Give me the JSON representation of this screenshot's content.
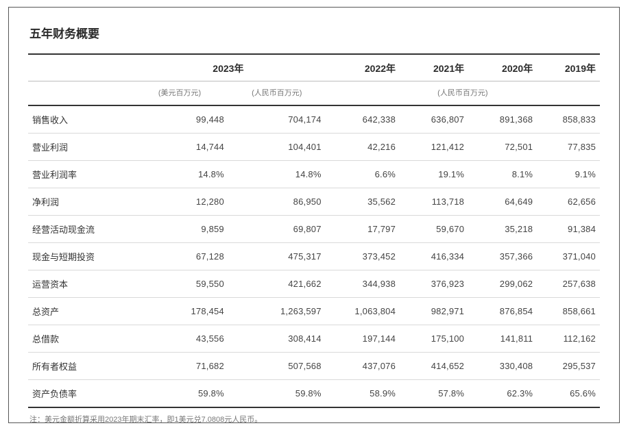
{
  "title": "五年财务概要",
  "header": {
    "years": {
      "y2023": "2023年",
      "y2022": "2022年",
      "y2021": "2021年",
      "y2020": "2020年",
      "y2019": "2019年"
    },
    "units": {
      "usd_mm": "(美元百万元)",
      "rmb_mm_23": "(人民币百万元)",
      "rmb_mm_rest": "(人民币百万元)"
    }
  },
  "table": {
    "type": "table",
    "columns": [
      "label",
      "usd_2023",
      "rmb_2023",
      "2022",
      "2021",
      "2020",
      "2019"
    ],
    "alignment": [
      "left",
      "right",
      "right",
      "right",
      "right",
      "right",
      "right"
    ],
    "col_widths_pct": [
      18,
      17,
      17,
      13,
      12,
      12,
      11
    ],
    "border_color_strong": "#333333",
    "border_color_light": "#d9d9d9",
    "text_color": "#444444",
    "label_color": "#333333",
    "unit_color": "#777777",
    "background_color": "#ffffff",
    "title_fontsize": 17,
    "header_fontsize": 14,
    "body_fontsize": 13,
    "unit_fontsize": 11,
    "footnote_fontsize": 11,
    "rows": [
      {
        "label": "销售收入",
        "usd": "99,448",
        "rmb23": "704,174",
        "y22": "642,338",
        "y21": "636,807",
        "y20": "891,368",
        "y19": "858,833"
      },
      {
        "label": "营业利润",
        "usd": "14,744",
        "rmb23": "104,401",
        "y22": "42,216",
        "y21": "121,412",
        "y20": "72,501",
        "y19": "77,835"
      },
      {
        "label": "营业利润率",
        "usd": "14.8%",
        "rmb23": "14.8%",
        "y22": "6.6%",
        "y21": "19.1%",
        "y20": "8.1%",
        "y19": "9.1%"
      },
      {
        "label": "净利润",
        "usd": "12,280",
        "rmb23": "86,950",
        "y22": "35,562",
        "y21": "113,718",
        "y20": "64,649",
        "y19": "62,656"
      },
      {
        "label": "经营活动现金流",
        "usd": "9,859",
        "rmb23": "69,807",
        "y22": "17,797",
        "y21": "59,670",
        "y20": "35,218",
        "y19": "91,384"
      },
      {
        "label": "现金与短期投资",
        "usd": "67,128",
        "rmb23": "475,317",
        "y22": "373,452",
        "y21": "416,334",
        "y20": "357,366",
        "y19": "371,040"
      },
      {
        "label": "运营资本",
        "usd": "59,550",
        "rmb23": "421,662",
        "y22": "344,938",
        "y21": "376,923",
        "y20": "299,062",
        "y19": "257,638"
      },
      {
        "label": "总资产",
        "usd": "178,454",
        "rmb23": "1,263,597",
        "y22": "1,063,804",
        "y21": "982,971",
        "y20": "876,854",
        "y19": "858,661"
      },
      {
        "label": "总借款",
        "usd": "43,556",
        "rmb23": "308,414",
        "y22": "197,144",
        "y21": "175,100",
        "y20": "141,811",
        "y19": "112,162"
      },
      {
        "label": "所有者权益",
        "usd": "71,682",
        "rmb23": "507,568",
        "y22": "437,076",
        "y21": "414,652",
        "y20": "330,408",
        "y19": "295,537"
      },
      {
        "label": "资产负债率",
        "usd": "59.8%",
        "rmb23": "59.8%",
        "y22": "58.9%",
        "y21": "57.8%",
        "y20": "62.3%",
        "y19": "65.6%"
      }
    ]
  },
  "footnote": "注：美元金额折算采用2023年期末汇率，即1美元兑7.0808元人民币。"
}
